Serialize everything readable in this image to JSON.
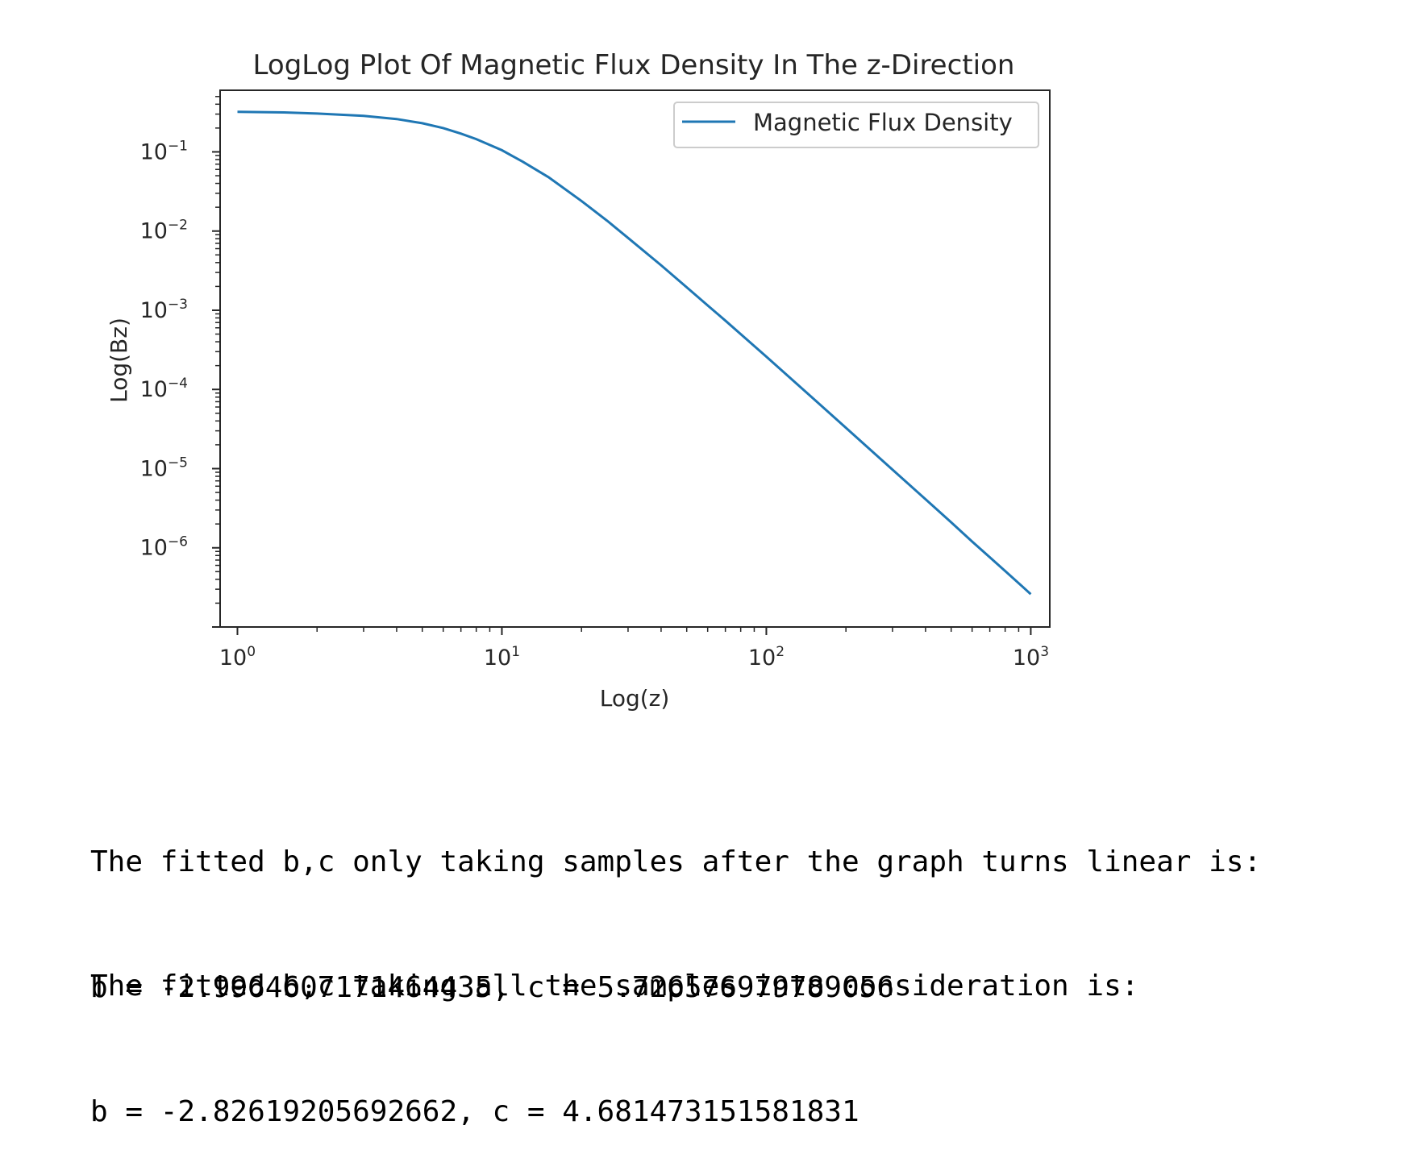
{
  "chart_data": {
    "type": "line",
    "title": "LogLog Plot Of Magnetic Flux Density In The z-Direction",
    "xlabel": "Log(z)",
    "ylabel": "Log(Bz)",
    "x_scale": "log",
    "y_scale": "log",
    "xlim": [
      0.86,
      1180
    ],
    "ylim": [
      1e-07,
      0.6
    ],
    "x_ticks": [
      {
        "value": 1,
        "base": "10",
        "exp": "0"
      },
      {
        "value": 10,
        "base": "10",
        "exp": "1"
      },
      {
        "value": 100,
        "base": "10",
        "exp": "2"
      },
      {
        "value": 1000,
        "base": "10",
        "exp": "3"
      }
    ],
    "y_ticks": [
      {
        "value": 0.1,
        "base": "10",
        "exp": "−1"
      },
      {
        "value": 0.01,
        "base": "10",
        "exp": "−2"
      },
      {
        "value": 0.001,
        "base": "10",
        "exp": "−3"
      },
      {
        "value": 0.0001,
        "base": "10",
        "exp": "−4"
      },
      {
        "value": 1e-05,
        "base": "10",
        "exp": "−5"
      },
      {
        "value": 1e-06,
        "base": "10",
        "exp": "−6"
      }
    ],
    "grid": false,
    "legend": "top-right",
    "series": [
      {
        "name": "Magnetic Flux Density",
        "color": "#1f77b4",
        "x": [
          1,
          1.5,
          2,
          3,
          4,
          5,
          6,
          7,
          8,
          10,
          12,
          15,
          20,
          25,
          30,
          40,
          50,
          60,
          70,
          80,
          100,
          150,
          200,
          300,
          400,
          500,
          600,
          700,
          800,
          1000
        ],
        "y": [
          0.32,
          0.315,
          0.305,
          0.285,
          0.26,
          0.23,
          0.2,
          0.17,
          0.145,
          0.105,
          0.075,
          0.048,
          0.024,
          0.0135,
          0.0082,
          0.0037,
          0.00195,
          0.00115,
          0.00074,
          0.0005,
          0.00026,
          7.75e-05,
          3.27e-05,
          9.7e-06,
          4.1e-06,
          2.1e-06,
          1.2e-06,
          7.6e-07,
          5.1e-07,
          2.6e-07
        ]
      }
    ]
  },
  "output": {
    "line1": "The fitted b,c only taking samples after the graph turns linear is:",
    "line2": "b = -2.9964607171464435, c = 5.726576979789056",
    "line3": "The fitted b,c taking all the samples into consideration is:",
    "line4": "b = -2.82619205692662, c = 4.681473151581831"
  }
}
